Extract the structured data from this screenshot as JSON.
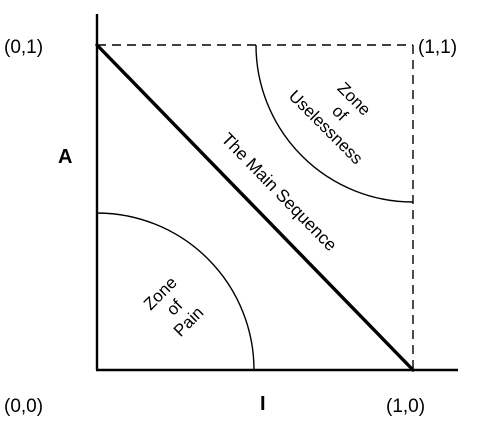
{
  "diagram": {
    "corners": {
      "top_left": "(0,1)",
      "top_right": "(1,1)",
      "bottom_left": "(0,0)",
      "bottom_right": "(1,0)"
    },
    "axes": {
      "y_label": "A",
      "x_label": "I"
    },
    "main_sequence": "The Main Sequence",
    "zone_of_pain": {
      "line1": "Zone",
      "line2": "of",
      "line3": "Pain"
    },
    "zone_of_uselessness": {
      "line1": "Zone",
      "line2": "of",
      "line3": "Uselessness"
    }
  }
}
